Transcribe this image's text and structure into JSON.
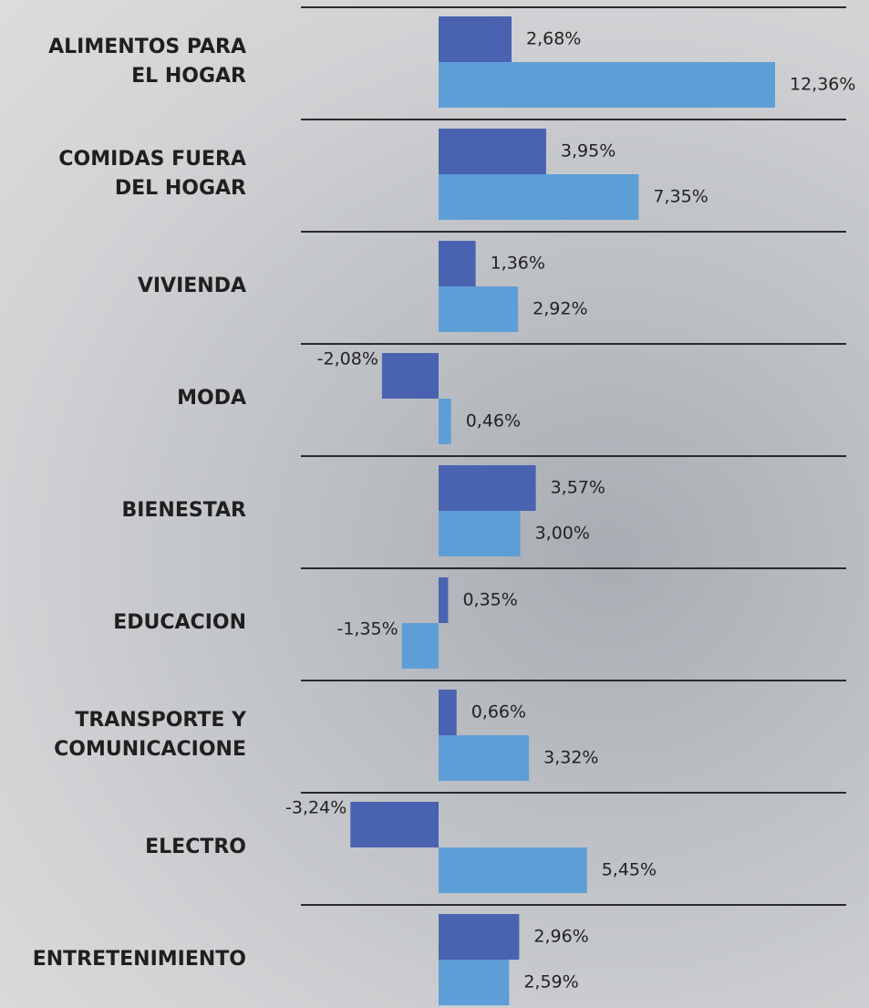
{
  "chart_data": {
    "type": "bar",
    "orientation": "horizontal",
    "categories": [
      "ALIMENTOS PARA\nEL HOGAR",
      "COMIDAS FUERA\nDEL HOGAR",
      "VIVIENDA",
      "MODA",
      "BIENESTAR",
      "EDUCACION",
      "TRANSPORTE Y\nCOMUNICACIONE",
      "ELECTRO",
      "ENTRETENIMIENTO"
    ],
    "series": [
      {
        "color": "#4a63b1",
        "values": [
          2.68,
          3.95,
          1.36,
          -2.08,
          3.57,
          0.35,
          0.66,
          -3.24,
          2.96
        ],
        "value_labels": [
          "2,68%",
          "3,95%",
          "1,36%",
          "-2,08%",
          "3,57%",
          "0,35%",
          "0,66%",
          "-3,24%",
          "2,96%"
        ]
      },
      {
        "color": "#5e9ed6",
        "values": [
          12.36,
          7.35,
          2.92,
          0.46,
          3.0,
          -1.35,
          3.32,
          5.45,
          2.59
        ],
        "value_labels": [
          "12,36%",
          "7,35%",
          "2,92%",
          "0,46%",
          "3,00%",
          "-1,35%",
          "3,32%",
          "5,45%",
          "2,59%"
        ]
      }
    ]
  }
}
